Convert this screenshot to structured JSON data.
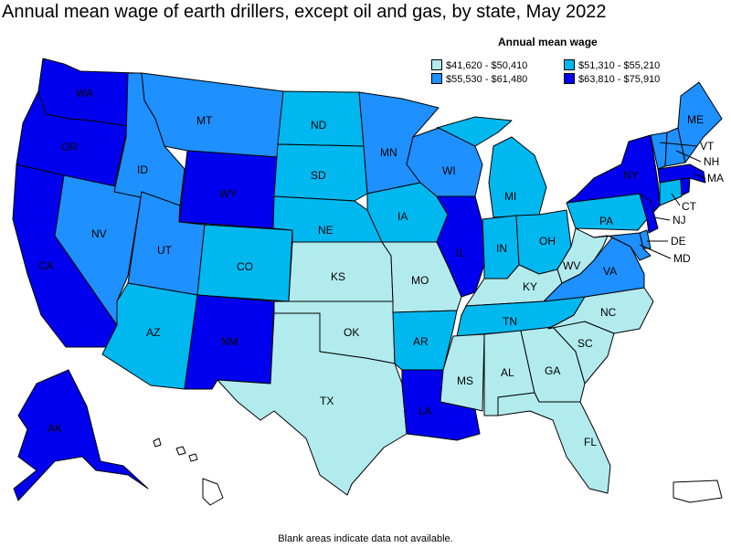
{
  "title": "Annual mean wage of earth drillers, except oil and gas, by state, May 2022",
  "legend": {
    "title": "Annual mean wage",
    "bins": [
      {
        "label": "$41,620 - $50,410",
        "color": "#b2ebee"
      },
      {
        "label": "$51,310 - $55,210",
        "color": "#00b8f0"
      },
      {
        "label": "$55,530 - $61,480",
        "color": "#1e90ff"
      },
      {
        "label": "$63,810 - $75,910",
        "color": "#0000ee"
      }
    ]
  },
  "footnote": "Blank areas indicate data not available.",
  "states": {
    "WA": 3,
    "OR": 3,
    "CA": 3,
    "NV": 2,
    "ID": 2,
    "MT": 2,
    "WY": 3,
    "UT": 2,
    "CO": 1,
    "AZ": 1,
    "NM": 3,
    "ND": 1,
    "SD": 1,
    "NE": 1,
    "KS": 0,
    "OK": 0,
    "TX": 0,
    "MN": 2,
    "IA": 1,
    "MO": 0,
    "AR": 1,
    "LA": 3,
    "WI": 2,
    "IL": 3,
    "MI": 1,
    "IN": 1,
    "OH": 1,
    "KY": 0,
    "TN": 1,
    "MS": 0,
    "AL": 0,
    "GA": 0,
    "FL": 0,
    "SC": 0,
    "NC": 0,
    "VA": 2,
    "WV": 0,
    "PA": 1,
    "NY": 3,
    "VT": 2,
    "NH": 2,
    "ME": 2,
    "MA": 3,
    "CT": 1,
    "RI": 3,
    "NJ": 3,
    "DE": 2,
    "MD": 2,
    "AK": 3
  }
}
